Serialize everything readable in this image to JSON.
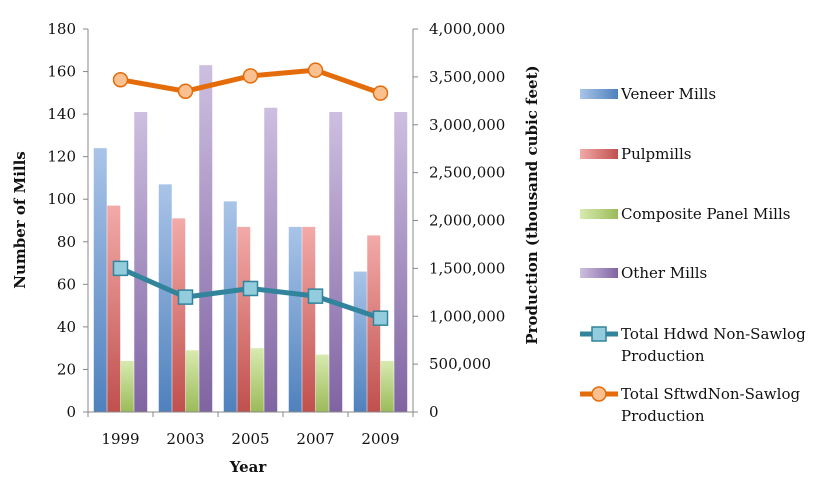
{
  "chart_data": {
    "type": "bar",
    "title": "",
    "xlabel": "Year",
    "ylabel": "Number of Mills",
    "y2label": "Production  (thousand cubic feet)",
    "categories": [
      "1999",
      "2003",
      "2005",
      "2007",
      "2009"
    ],
    "ylim": [
      0,
      180
    ],
    "yticks": [
      "0",
      "20",
      "40",
      "60",
      "80",
      "100",
      "120",
      "140",
      "160",
      "180"
    ],
    "y2lim": [
      0,
      4000000
    ],
    "y2ticks": [
      "0",
      "500,000",
      "1,000,000",
      "1,500,000",
      "2,000,000",
      "2,500,000",
      "3,000,000",
      "3,500,000",
      "4,000,000"
    ],
    "grid": false,
    "legend_position": "right",
    "bar_series": [
      {
        "name": "Veneer Mills",
        "values": [
          124,
          107,
          99,
          87,
          66
        ],
        "color": "#4f81bd",
        "color_light": "#a9c4e8"
      },
      {
        "name": "Pulpmills",
        "values": [
          97,
          91,
          87,
          87,
          83
        ],
        "color": "#c0504d",
        "color_light": "#f2aaa8"
      },
      {
        "name": "Composite Panel Mills",
        "values": [
          24,
          29,
          30,
          27,
          24
        ],
        "color": "#9bbb59",
        "color_light": "#d8eab0"
      },
      {
        "name": "Other Mills",
        "values": [
          141,
          163,
          143,
          141,
          141
        ],
        "color": "#8064a2",
        "color_light": "#cdbfe0"
      }
    ],
    "line_series": [
      {
        "name": "Total Hdwd Non-Sawlog Production",
        "axis": "secondary",
        "values": [
          1500000,
          1200000,
          1290000,
          1210000,
          980000
        ],
        "color": "#31849b",
        "marker": "square",
        "marker_color": "#93cddd"
      },
      {
        "name": "Total SftwdNon-Sawlog Production",
        "axis": "secondary",
        "values": [
          3470000,
          3350000,
          3510000,
          3570000,
          3330000
        ],
        "color": "#e46c0a",
        "marker": "circle",
        "marker_color": "#fac090"
      }
    ]
  }
}
